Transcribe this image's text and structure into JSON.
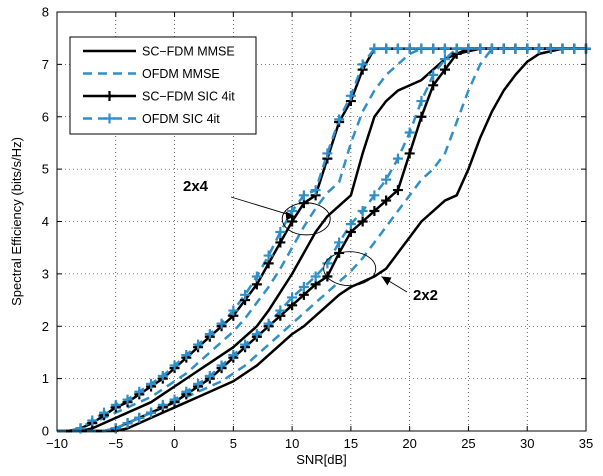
{
  "chart_data": {
    "type": "line",
    "title": "",
    "xlabel": "SNR[dB]",
    "ylabel": "Spectral Efficiency (bits/s/Hz)",
    "xlim": [
      -10,
      35
    ],
    "ylim": [
      0,
      8
    ],
    "xticks": [
      -10,
      -5,
      0,
      5,
      10,
      15,
      20,
      25,
      30,
      35
    ],
    "yticks": [
      0,
      1,
      2,
      3,
      4,
      5,
      6,
      7,
      8
    ],
    "grid": true,
    "legend_position": "top-left",
    "legend": [
      {
        "label": "SC−FDM MMSE",
        "style": "solid-black"
      },
      {
        "label": "OFDM MMSE",
        "style": "dashed-blue"
      },
      {
        "label": "SC−FDM SIC 4it",
        "style": "solid-black-plus"
      },
      {
        "label": "OFDM SIC 4it",
        "style": "dashed-blue-plus"
      }
    ],
    "annotations": [
      {
        "text": "2x4",
        "ellipse_center": [
          11.2,
          4.05
        ],
        "arrow_to": [
          10.2,
          4.1
        ]
      },
      {
        "text": "2x2",
        "ellipse_center": [
          14.9,
          3.1
        ],
        "arrow_to": [
          17.6,
          2.95
        ]
      }
    ],
    "colors": {
      "black": "#000000",
      "blue": "#2f8fc8"
    },
    "series": [
      {
        "name": "SC−FDM MMSE",
        "group": "2x4",
        "color": "#000000",
        "dash": false,
        "marker": "none",
        "x": [
          -10,
          -9,
          -8,
          -7,
          -6,
          -5,
          -4,
          -3,
          -2,
          -1,
          0,
          1,
          2,
          3,
          4,
          5,
          6,
          7,
          8,
          9,
          10,
          11,
          12,
          13,
          14,
          15,
          16,
          17,
          18,
          19,
          20,
          21,
          22,
          23,
          24,
          25,
          26,
          27,
          28,
          29,
          30,
          31,
          32,
          33,
          34,
          35
        ],
        "y": [
          0,
          0,
          0,
          0.05,
          0.15,
          0.25,
          0.35,
          0.45,
          0.55,
          0.7,
          0.85,
          1.0,
          1.15,
          1.3,
          1.45,
          1.6,
          1.8,
          2.0,
          2.3,
          2.65,
          3.0,
          3.4,
          3.8,
          4.1,
          4.3,
          4.5,
          5.3,
          6.0,
          6.3,
          6.5,
          6.6,
          6.7,
          6.9,
          7.1,
          7.2,
          7.25,
          7.3,
          7.3,
          7.3,
          7.3,
          7.3,
          7.3,
          7.3,
          7.3,
          7.3,
          7.3
        ]
      },
      {
        "name": "OFDM MMSE",
        "group": "2x4",
        "color": "#2f8fc8",
        "dash": true,
        "marker": "none",
        "x": [
          -10,
          -9,
          -8,
          -7,
          -6,
          -5,
          -4,
          -3,
          -2,
          -1,
          0,
          1,
          2,
          3,
          4,
          5,
          6,
          7,
          8,
          9,
          10,
          11,
          12,
          13,
          14,
          15,
          16,
          17,
          18,
          19,
          20,
          21,
          22,
          23,
          24,
          25,
          26,
          27,
          28,
          29,
          30,
          31,
          32,
          33,
          34,
          35
        ],
        "y": [
          0,
          0,
          0.05,
          0.15,
          0.25,
          0.35,
          0.45,
          0.55,
          0.65,
          0.8,
          0.95,
          1.1,
          1.3,
          1.5,
          1.7,
          1.9,
          2.15,
          2.45,
          2.75,
          3.1,
          3.5,
          3.9,
          4.25,
          4.55,
          4.75,
          5.5,
          6.1,
          6.5,
          6.8,
          7.0,
          7.2,
          7.3,
          7.3,
          7.3,
          7.3,
          7.3,
          7.3,
          7.3,
          7.3,
          7.3,
          7.3,
          7.3,
          7.3,
          7.3,
          7.3,
          7.3
        ]
      },
      {
        "name": "SC−FDM SIC 4it",
        "group": "2x4",
        "color": "#000000",
        "dash": false,
        "marker": "plus",
        "x": [
          -10,
          -9,
          -8,
          -7,
          -6,
          -5,
          -4,
          -3,
          -2,
          -1,
          0,
          1,
          2,
          3,
          4,
          5,
          6,
          7,
          8,
          9,
          10,
          11,
          12,
          13,
          14,
          15,
          16,
          17,
          18,
          19,
          20,
          21,
          22,
          23,
          24,
          25,
          26,
          27,
          28,
          29,
          30,
          31,
          32,
          33,
          34,
          35
        ],
        "y": [
          0,
          0,
          0.05,
          0.15,
          0.3,
          0.45,
          0.55,
          0.7,
          0.85,
          1.0,
          1.2,
          1.4,
          1.6,
          1.8,
          2.0,
          2.2,
          2.5,
          2.8,
          3.2,
          3.6,
          4.0,
          4.35,
          4.5,
          5.2,
          5.9,
          6.3,
          6.9,
          7.3,
          7.3,
          7.3,
          7.3,
          7.3,
          7.3,
          7.3,
          7.3,
          7.3,
          7.3,
          7.3,
          7.3,
          7.3,
          7.3,
          7.3,
          7.3,
          7.3,
          7.3,
          7.3
        ]
      },
      {
        "name": "OFDM SIC 4it",
        "group": "2x4",
        "color": "#2f8fc8",
        "dash": true,
        "marker": "plus",
        "x": [
          -10,
          -9,
          -8,
          -7,
          -6,
          -5,
          -4,
          -3,
          -2,
          -1,
          0,
          1,
          2,
          3,
          4,
          5,
          6,
          7,
          8,
          9,
          10,
          11,
          12,
          13,
          14,
          15,
          16,
          17,
          18,
          19,
          20,
          21,
          22,
          23,
          24,
          25,
          26,
          27,
          28,
          29,
          30,
          31,
          32,
          33,
          34,
          35
        ],
        "y": [
          0,
          0,
          0.05,
          0.2,
          0.35,
          0.5,
          0.6,
          0.75,
          0.9,
          1.05,
          1.25,
          1.45,
          1.65,
          1.85,
          2.05,
          2.3,
          2.6,
          2.95,
          3.35,
          3.8,
          4.2,
          4.5,
          4.6,
          5.3,
          5.95,
          6.4,
          7.0,
          7.3,
          7.3,
          7.3,
          7.3,
          7.3,
          7.3,
          7.3,
          7.3,
          7.3,
          7.3,
          7.3,
          7.3,
          7.3,
          7.3,
          7.3,
          7.3,
          7.3,
          7.3,
          7.3
        ]
      },
      {
        "name": "SC−FDM MMSE",
        "group": "2x2",
        "color": "#000000",
        "dash": false,
        "marker": "none",
        "x": [
          -10,
          -9,
          -8,
          -7,
          -6,
          -5,
          -4,
          -3,
          -2,
          -1,
          0,
          1,
          2,
          3,
          4,
          5,
          6,
          7,
          8,
          9,
          10,
          11,
          12,
          13,
          14,
          15,
          16,
          17,
          18,
          19,
          20,
          21,
          22,
          23,
          24,
          25,
          26,
          27,
          28,
          29,
          30,
          31,
          32,
          33,
          34,
          35
        ],
        "y": [
          0,
          0,
          0,
          0,
          0,
          0,
          0.05,
          0.15,
          0.25,
          0.35,
          0.45,
          0.55,
          0.65,
          0.75,
          0.85,
          0.95,
          1.1,
          1.25,
          1.45,
          1.65,
          1.85,
          2.0,
          2.2,
          2.4,
          2.6,
          2.75,
          2.85,
          2.95,
          3.1,
          3.4,
          3.7,
          4.0,
          4.2,
          4.4,
          4.5,
          5.0,
          5.6,
          6.1,
          6.5,
          6.8,
          7.05,
          7.2,
          7.25,
          7.3,
          7.3,
          7.3
        ]
      },
      {
        "name": "OFDM MMSE",
        "group": "2x2",
        "color": "#2f8fc8",
        "dash": true,
        "marker": "none",
        "x": [
          -10,
          -9,
          -8,
          -7,
          -6,
          -5,
          -4,
          -3,
          -2,
          -1,
          0,
          1,
          2,
          3,
          4,
          5,
          6,
          7,
          8,
          9,
          10,
          11,
          12,
          13,
          14,
          15,
          16,
          17,
          18,
          19,
          20,
          21,
          22,
          23,
          24,
          25,
          26,
          27,
          28,
          29,
          30,
          31,
          32,
          33,
          34,
          35
        ],
        "y": [
          0,
          0,
          0,
          0,
          0,
          0.05,
          0.15,
          0.25,
          0.35,
          0.45,
          0.55,
          0.65,
          0.75,
          0.85,
          0.95,
          1.1,
          1.25,
          1.45,
          1.65,
          1.85,
          2.05,
          2.25,
          2.45,
          2.65,
          2.85,
          3.05,
          3.3,
          3.6,
          3.9,
          4.2,
          4.5,
          4.8,
          5.0,
          5.3,
          5.9,
          6.5,
          7.0,
          7.3,
          7.3,
          7.3,
          7.3,
          7.3,
          7.3,
          7.3,
          7.3,
          7.3
        ]
      },
      {
        "name": "SC−FDM SIC 4it",
        "group": "2x2",
        "color": "#000000",
        "dash": false,
        "marker": "plus",
        "x": [
          -10,
          -9,
          -8,
          -7,
          -6,
          -5,
          -4,
          -3,
          -2,
          -1,
          0,
          1,
          2,
          3,
          4,
          5,
          6,
          7,
          8,
          9,
          10,
          11,
          12,
          13,
          14,
          15,
          16,
          17,
          18,
          19,
          20,
          21,
          22,
          23,
          24,
          25,
          26,
          27,
          28,
          29,
          30,
          31,
          32,
          33,
          34,
          35
        ],
        "y": [
          0,
          0,
          0,
          0,
          0,
          0.05,
          0.15,
          0.25,
          0.35,
          0.45,
          0.55,
          0.7,
          0.85,
          1.0,
          1.2,
          1.4,
          1.6,
          1.8,
          2.0,
          2.2,
          2.4,
          2.6,
          2.8,
          2.95,
          3.4,
          3.8,
          4.0,
          4.2,
          4.4,
          4.6,
          5.3,
          6.0,
          6.6,
          6.9,
          7.2,
          7.3,
          7.3,
          7.3,
          7.3,
          7.3,
          7.3,
          7.3,
          7.3,
          7.3,
          7.3,
          7.3
        ]
      },
      {
        "name": "OFDM SIC 4it",
        "group": "2x2",
        "color": "#2f8fc8",
        "dash": true,
        "marker": "plus",
        "x": [
          -10,
          -9,
          -8,
          -7,
          -6,
          -5,
          -4,
          -3,
          -2,
          -1,
          0,
          1,
          2,
          3,
          4,
          5,
          6,
          7,
          8,
          9,
          10,
          11,
          12,
          13,
          14,
          15,
          16,
          17,
          18,
          19,
          20,
          21,
          22,
          23,
          24,
          25,
          26,
          27,
          28,
          29,
          30,
          31,
          32,
          33,
          34,
          35
        ],
        "y": [
          0,
          0,
          0,
          0,
          0,
          0.05,
          0.15,
          0.25,
          0.35,
          0.5,
          0.6,
          0.75,
          0.9,
          1.05,
          1.25,
          1.45,
          1.65,
          1.85,
          2.05,
          2.3,
          2.55,
          2.75,
          2.95,
          3.2,
          3.6,
          3.95,
          4.2,
          4.5,
          4.8,
          5.2,
          5.7,
          6.3,
          6.8,
          7.1,
          7.3,
          7.3,
          7.3,
          7.3,
          7.3,
          7.3,
          7.3,
          7.3,
          7.3,
          7.3,
          7.3,
          7.3
        ]
      }
    ]
  }
}
